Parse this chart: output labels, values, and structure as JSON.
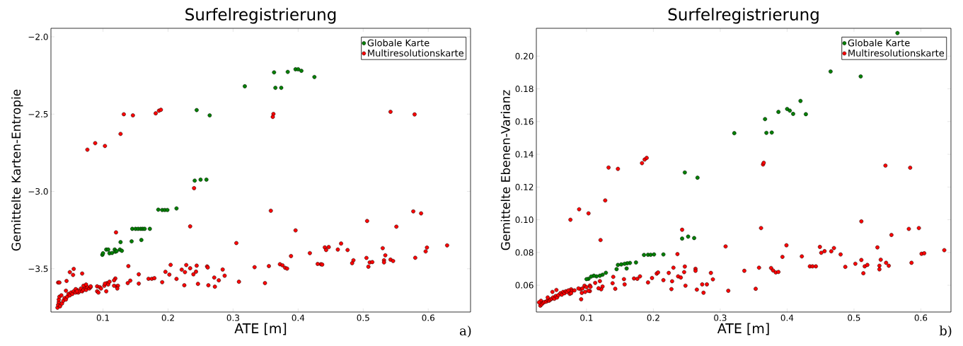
{
  "chart_data": [
    {
      "type": "scatter",
      "title": "Surfelregistrierung",
      "xlabel": "ATE [m]",
      "ylabel": "Gemittelte Karten-Entropie",
      "marker": "circle",
      "legend": "top right",
      "xlim": [
        0.02,
        0.665
      ],
      "ylim": [
        -3.78,
        -1.945
      ],
      "xticks": [
        {
          "value": 0.1,
          "label": "0.1"
        },
        {
          "value": 0.2,
          "label": "0.2"
        },
        {
          "value": 0.3,
          "label": "0.3"
        },
        {
          "value": 0.4,
          "label": "0.4"
        },
        {
          "value": 0.5,
          "label": "0.5"
        },
        {
          "value": 0.6,
          "label": "0.6"
        }
      ],
      "yticks": [
        {
          "value": -3.5,
          "label": "−3.5"
        },
        {
          "value": -3.0,
          "label": "−3.0"
        },
        {
          "value": -2.5,
          "label": "−2.5"
        },
        {
          "value": -2.0,
          "label": "−2.0"
        }
      ],
      "annotations": [
        "a)"
      ],
      "series": [
        {
          "name": "Globale Karte",
          "color": "#008000",
          "x": [
            0.318,
            0.363,
            0.365,
            0.374,
            0.384,
            0.396,
            0.4,
            0.405,
            0.425,
            0.244,
            0.264,
            0.241,
            0.25,
            0.259,
            0.185,
            0.191,
            0.195,
            0.199,
            0.213,
            0.145,
            0.15,
            0.154,
            0.158,
            0.161,
            0.164,
            0.172,
            0.127,
            0.144,
            0.159,
            0.105,
            0.108,
            0.118,
            0.126,
            0.129,
            0.099,
            0.1,
            0.11,
            0.114,
            0.119,
            0.121
          ],
          "values": [
            -2.32,
            -2.23,
            -2.33,
            -2.33,
            -2.227,
            -2.21,
            -2.21,
            -2.22,
            -2.26,
            -2.474,
            -2.508,
            -2.93,
            -2.924,
            -2.924,
            -3.118,
            -3.12,
            -3.12,
            -3.12,
            -3.11,
            -3.242,
            -3.242,
            -3.242,
            -3.242,
            -3.242,
            -3.242,
            -3.242,
            -3.328,
            -3.323,
            -3.314,
            -3.376,
            -3.376,
            -3.376,
            -3.376,
            -3.384,
            -3.41,
            -3.4,
            -3.4,
            -3.398,
            -3.39,
            -3.386
          ]
        },
        {
          "name": "Multiresolutionskarte",
          "color": "#ff0000",
          "x": [
            0.076,
            0.088,
            0.103,
            0.127,
            0.132,
            0.146,
            0.181,
            0.186,
            0.189,
            0.24,
            0.362,
            0.361,
            0.542,
            0.579,
            0.358,
            0.577,
            0.589,
            0.12,
            0.234,
            0.305,
            0.396,
            0.506,
            0.551,
            0.629,
            0.598,
            0.596,
            0.58,
            0.466,
            0.476,
            0.461,
            0.441,
            0.447,
            0.443,
            0.435,
            0.43,
            0.437,
            0.418,
            0.389,
            0.372,
            0.376,
            0.38,
            0.383,
            0.355,
            0.333,
            0.309,
            0.349,
            0.483,
            0.485,
            0.505,
            0.508,
            0.51,
            0.514,
            0.53,
            0.534,
            0.532,
            0.532,
            0.542,
            0.546,
            0.196,
            0.202,
            0.204,
            0.213,
            0.191,
            0.221,
            0.226,
            0.228,
            0.225,
            0.234,
            0.239,
            0.243,
            0.244,
            0.246,
            0.26,
            0.261,
            0.262,
            0.271,
            0.278,
            0.272,
            0.284,
            0.287,
            0.139,
            0.142,
            0.138,
            0.155,
            0.155,
            0.17,
            0.175,
            0.179,
            0.119,
            0.031,
            0.033,
            0.049,
            0.055,
            0.054,
            0.068,
            0.044,
            0.03,
            0.031,
            0.032,
            0.032,
            0.033,
            0.034,
            0.037,
            0.039,
            0.041,
            0.036,
            0.043,
            0.045,
            0.047,
            0.049,
            0.051,
            0.053,
            0.055,
            0.058,
            0.06,
            0.062,
            0.064,
            0.066,
            0.068,
            0.07,
            0.072,
            0.074,
            0.076,
            0.079,
            0.081,
            0.043,
            0.058,
            0.06,
            0.07,
            0.074,
            0.081,
            0.091,
            0.095,
            0.097,
            0.102,
            0.106,
            0.108,
            0.11,
            0.091,
            0.093,
            0.105,
            0.121,
            0.123,
            0.117,
            0.122,
            0.103,
            0.117
          ],
          "values": [
            -2.73,
            -2.688,
            -2.706,
            -2.628,
            -2.501,
            -2.508,
            -2.495,
            -2.478,
            -2.472,
            -2.979,
            -2.499,
            -2.518,
            -2.485,
            -2.502,
            -3.125,
            -3.129,
            -3.142,
            -3.265,
            -3.226,
            -3.334,
            -3.252,
            -3.191,
            -3.228,
            -3.349,
            -3.363,
            -3.388,
            -3.429,
            -3.337,
            -3.379,
            -3.376,
            -3.362,
            -3.36,
            -3.379,
            -3.471,
            -3.469,
            -3.473,
            -3.399,
            -3.418,
            -3.471,
            -3.478,
            -3.494,
            -3.499,
            -3.483,
            -3.49,
            -3.584,
            -3.593,
            -3.464,
            -3.445,
            -3.43,
            -3.487,
            -3.459,
            -3.457,
            -3.367,
            -3.413,
            -3.445,
            -3.459,
            -3.441,
            -3.45,
            -3.52,
            -3.538,
            -3.475,
            -3.566,
            -3.587,
            -3.506,
            -3.522,
            -3.476,
            -3.607,
            -3.497,
            -3.536,
            -3.519,
            -3.48,
            -3.598,
            -3.485,
            -3.492,
            -3.607,
            -3.557,
            -3.575,
            -3.616,
            -3.505,
            -3.545,
            -3.483,
            -3.577,
            -3.593,
            -3.536,
            -3.596,
            -3.565,
            -3.565,
            -3.561,
            -3.563,
            -3.589,
            -3.589,
            -3.522,
            -3.501,
            -3.54,
            -3.531,
            -3.579,
            -3.752,
            -3.734,
            -3.716,
            -3.699,
            -3.681,
            -3.743,
            -3.725,
            -3.707,
            -3.69,
            -3.672,
            -3.699,
            -3.681,
            -3.663,
            -3.672,
            -3.654,
            -3.663,
            -3.646,
            -3.654,
            -3.637,
            -3.654,
            -3.646,
            -3.628,
            -3.646,
            -3.637,
            -3.619,
            -3.637,
            -3.619,
            -3.628,
            -3.619,
            -3.642,
            -3.632,
            -3.646,
            -3.61,
            -3.602,
            -3.614,
            -3.614,
            -3.619,
            -3.628,
            -3.61,
            -3.593,
            -3.602,
            -3.584,
            -3.646,
            -3.654,
            -3.646,
            -3.614,
            -3.61,
            -3.61,
            -3.628,
            -3.596,
            -3.575
          ]
        }
      ]
    },
    {
      "type": "scatter",
      "title": "Surfelregistrierung",
      "xlabel": "ATE [m]",
      "ylabel": "Gemittelte Ebenen-Varianz",
      "marker": "circle",
      "legend": "top right",
      "xlim": [
        0.025,
        0.645
      ],
      "ylim": [
        0.0436,
        0.217
      ],
      "xticks": [
        {
          "value": 0.1,
          "label": "0.1"
        },
        {
          "value": 0.2,
          "label": "0.2"
        },
        {
          "value": 0.3,
          "label": "0.3"
        },
        {
          "value": 0.4,
          "label": "0.4"
        },
        {
          "value": 0.5,
          "label": "0.5"
        },
        {
          "value": 0.6,
          "label": "0.6"
        }
      ],
      "yticks": [
        {
          "value": 0.06,
          "label": "0.06"
        },
        {
          "value": 0.08,
          "label": "0.08"
        },
        {
          "value": 0.1,
          "label": "0.10"
        },
        {
          "value": 0.12,
          "label": "0.12"
        },
        {
          "value": 0.14,
          "label": "0.14"
        },
        {
          "value": 0.16,
          "label": "0.16"
        },
        {
          "value": 0.18,
          "label": "0.18"
        },
        {
          "value": 0.2,
          "label": "0.20"
        }
      ],
      "annotations": [
        "b)"
      ],
      "series": [
        {
          "name": "Globale Karte",
          "color": "#008000",
          "x": [
            0.565,
            0.465,
            0.51,
            0.42,
            0.428,
            0.4,
            0.404,
            0.409,
            0.387,
            0.367,
            0.369,
            0.377,
            0.321,
            0.247,
            0.266,
            0.243,
            0.252,
            0.261,
            0.186,
            0.192,
            0.196,
            0.201,
            0.215,
            0.174,
            0.165,
            0.161,
            0.147,
            0.152,
            0.157,
            0.145,
            0.16,
            0.129,
            0.124,
            0.12,
            0.115,
            0.111,
            0.107,
            0.103,
            0.1
          ],
          "values": [
            0.2141,
            0.1906,
            0.1876,
            0.1726,
            0.1645,
            0.1677,
            0.1667,
            0.1647,
            0.1659,
            0.1615,
            0.1531,
            0.1533,
            0.1529,
            0.1289,
            0.1257,
            0.0885,
            0.0897,
            0.0888,
            0.0785,
            0.0786,
            0.0786,
            0.0788,
            0.0788,
            0.0739,
            0.0736,
            0.0734,
            0.0724,
            0.0727,
            0.0731,
            0.0698,
            0.0702,
            0.0676,
            0.0664,
            0.0658,
            0.0654,
            0.0658,
            0.0653,
            0.0639,
            0.0637
          ]
        },
        {
          "name": "Multiresolutionskarte",
          "color": "#ff0000",
          "x": [
            0.089,
            0.128,
            0.133,
            0.147,
            0.183,
            0.187,
            0.19,
            0.364,
            0.365,
            0.547,
            0.584,
            0.076,
            0.103,
            0.121,
            0.243,
            0.361,
            0.308,
            0.399,
            0.511,
            0.556,
            0.582,
            0.597,
            0.635,
            0.601,
            0.605,
            0.586,
            0.535,
            0.54,
            0.538,
            0.538,
            0.548,
            0.552,
            0.511,
            0.514,
            0.516,
            0.52,
            0.502,
            0.487,
            0.48,
            0.466,
            0.47,
            0.449,
            0.451,
            0.456,
            0.434,
            0.438,
            0.443,
            0.422,
            0.393,
            0.376,
            0.379,
            0.383,
            0.387,
            0.358,
            0.336,
            0.312,
            0.353,
            0.192,
            0.198,
            0.205,
            0.207,
            0.215,
            0.223,
            0.23,
            0.228,
            0.227,
            0.236,
            0.237,
            0.241,
            0.246,
            0.247,
            0.248,
            0.263,
            0.263,
            0.265,
            0.273,
            0.275,
            0.28,
            0.286,
            0.289,
            0.14,
            0.139,
            0.143,
            0.156,
            0.157,
            0.171,
            0.176,
            0.18,
            0.12,
            0.124,
            0.122,
            0.118,
            0.092,
            0.093,
            0.091,
            0.105,
            0.106,
            0.113,
            0.105,
            0.049,
            0.055,
            0.077,
            0.078,
            0.031,
            0.032,
            0.033,
            0.035,
            0.037,
            0.04,
            0.042,
            0.044,
            0.046,
            0.048,
            0.05,
            0.052,
            0.054,
            0.056,
            0.058,
            0.061,
            0.063,
            0.065,
            0.067,
            0.069,
            0.071,
            0.073,
            0.075,
            0.077,
            0.082,
            0.088,
            0.094,
            0.097,
            0.1,
            0.098,
            0.103,
            0.042,
            0.029
          ],
          "values": [
            0.1064,
            0.1118,
            0.1319,
            0.1311,
            0.1346,
            0.1368,
            0.1378,
            0.1338,
            0.1348,
            0.1331,
            0.1318,
            0.1,
            0.1039,
            0.0876,
            0.0939,
            0.0949,
            0.0837,
            0.0844,
            0.099,
            0.0907,
            0.0944,
            0.0949,
            0.0814,
            0.0792,
            0.0795,
            0.0737,
            0.0831,
            0.0756,
            0.0719,
            0.0697,
            0.0737,
            0.0719,
            0.0754,
            0.0673,
            0.0715,
            0.0724,
            0.0731,
            0.0712,
            0.0788,
            0.0807,
            0.0827,
            0.0834,
            0.0798,
            0.0808,
            0.0715,
            0.0715,
            0.0715,
            0.0776,
            0.0773,
            0.0705,
            0.069,
            0.0678,
            0.0681,
            0.0707,
            0.0688,
            0.0566,
            0.0578,
            0.0617,
            0.0644,
            0.0671,
            0.0678,
            0.0631,
            0.0675,
            0.0707,
            0.0624,
            0.0576,
            0.079,
            0.0654,
            0.0647,
            0.068,
            0.0714,
            0.0597,
            0.07,
            0.0688,
            0.0573,
            0.0605,
            0.0554,
            0.0605,
            0.0675,
            0.0636,
            0.0651,
            0.0612,
            0.0578,
            0.0637,
            0.0605,
            0.0641,
            0.0639,
            0.0654,
            0.0625,
            0.0592,
            0.0575,
            0.0581,
            0.0514,
            0.0553,
            0.0576,
            0.0598,
            0.059,
            0.0614,
            0.0564,
            0.0559,
            0.0571,
            0.0575,
            0.0564,
            0.0475,
            0.0505,
            0.0483,
            0.0492,
            0.0497,
            0.05,
            0.0508,
            0.0505,
            0.0512,
            0.0517,
            0.0525,
            0.0517,
            0.0534,
            0.0525,
            0.0539,
            0.0551,
            0.0542,
            0.0559,
            0.0551,
            0.0563,
            0.0559,
            0.0568,
            0.0547,
            0.0551,
            0.0568,
            0.058,
            0.058,
            0.0597,
            0.0588,
            0.0559,
            0.0566,
            0.0525,
            0.0495
          ]
        }
      ]
    }
  ]
}
